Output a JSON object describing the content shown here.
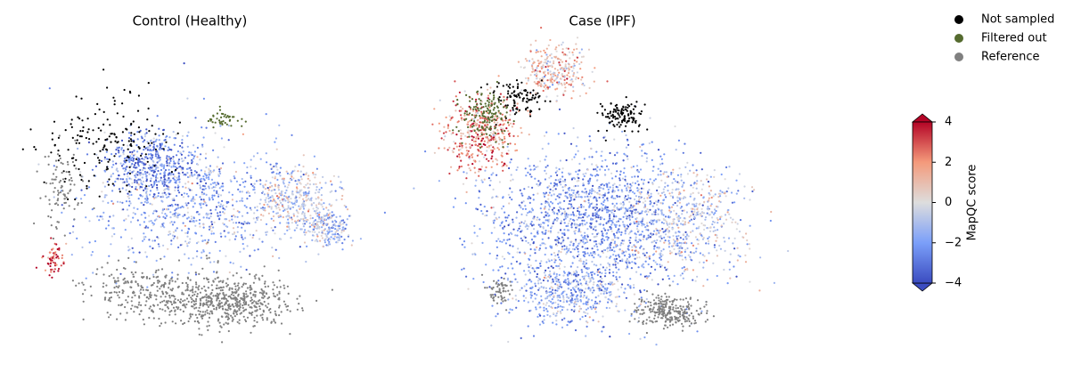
{
  "chart_data": [
    {
      "type": "embedding",
      "title": "Control (Healthy)"
    },
    {
      "type": "embedding",
      "title": "Case (IPF)"
    }
  ],
  "legend": {
    "entries": [
      {
        "name": "Not sampled",
        "color": "#000000"
      },
      {
        "name": "Filtered out",
        "color": "#556b2f"
      },
      {
        "name": "Reference",
        "color": "#808080"
      }
    ]
  },
  "colorbar": {
    "label": "MapQC score",
    "lim": [
      -4,
      4
    ],
    "ticks": [
      {
        "value": -4,
        "label": "−4"
      },
      {
        "value": -2,
        "label": "−2"
      },
      0,
      2,
      4
    ],
    "colors": [
      "#3b4cc0",
      "#7b9ff9",
      "#dddddd",
      "#f49a7b",
      "#b40426"
    ]
  }
}
